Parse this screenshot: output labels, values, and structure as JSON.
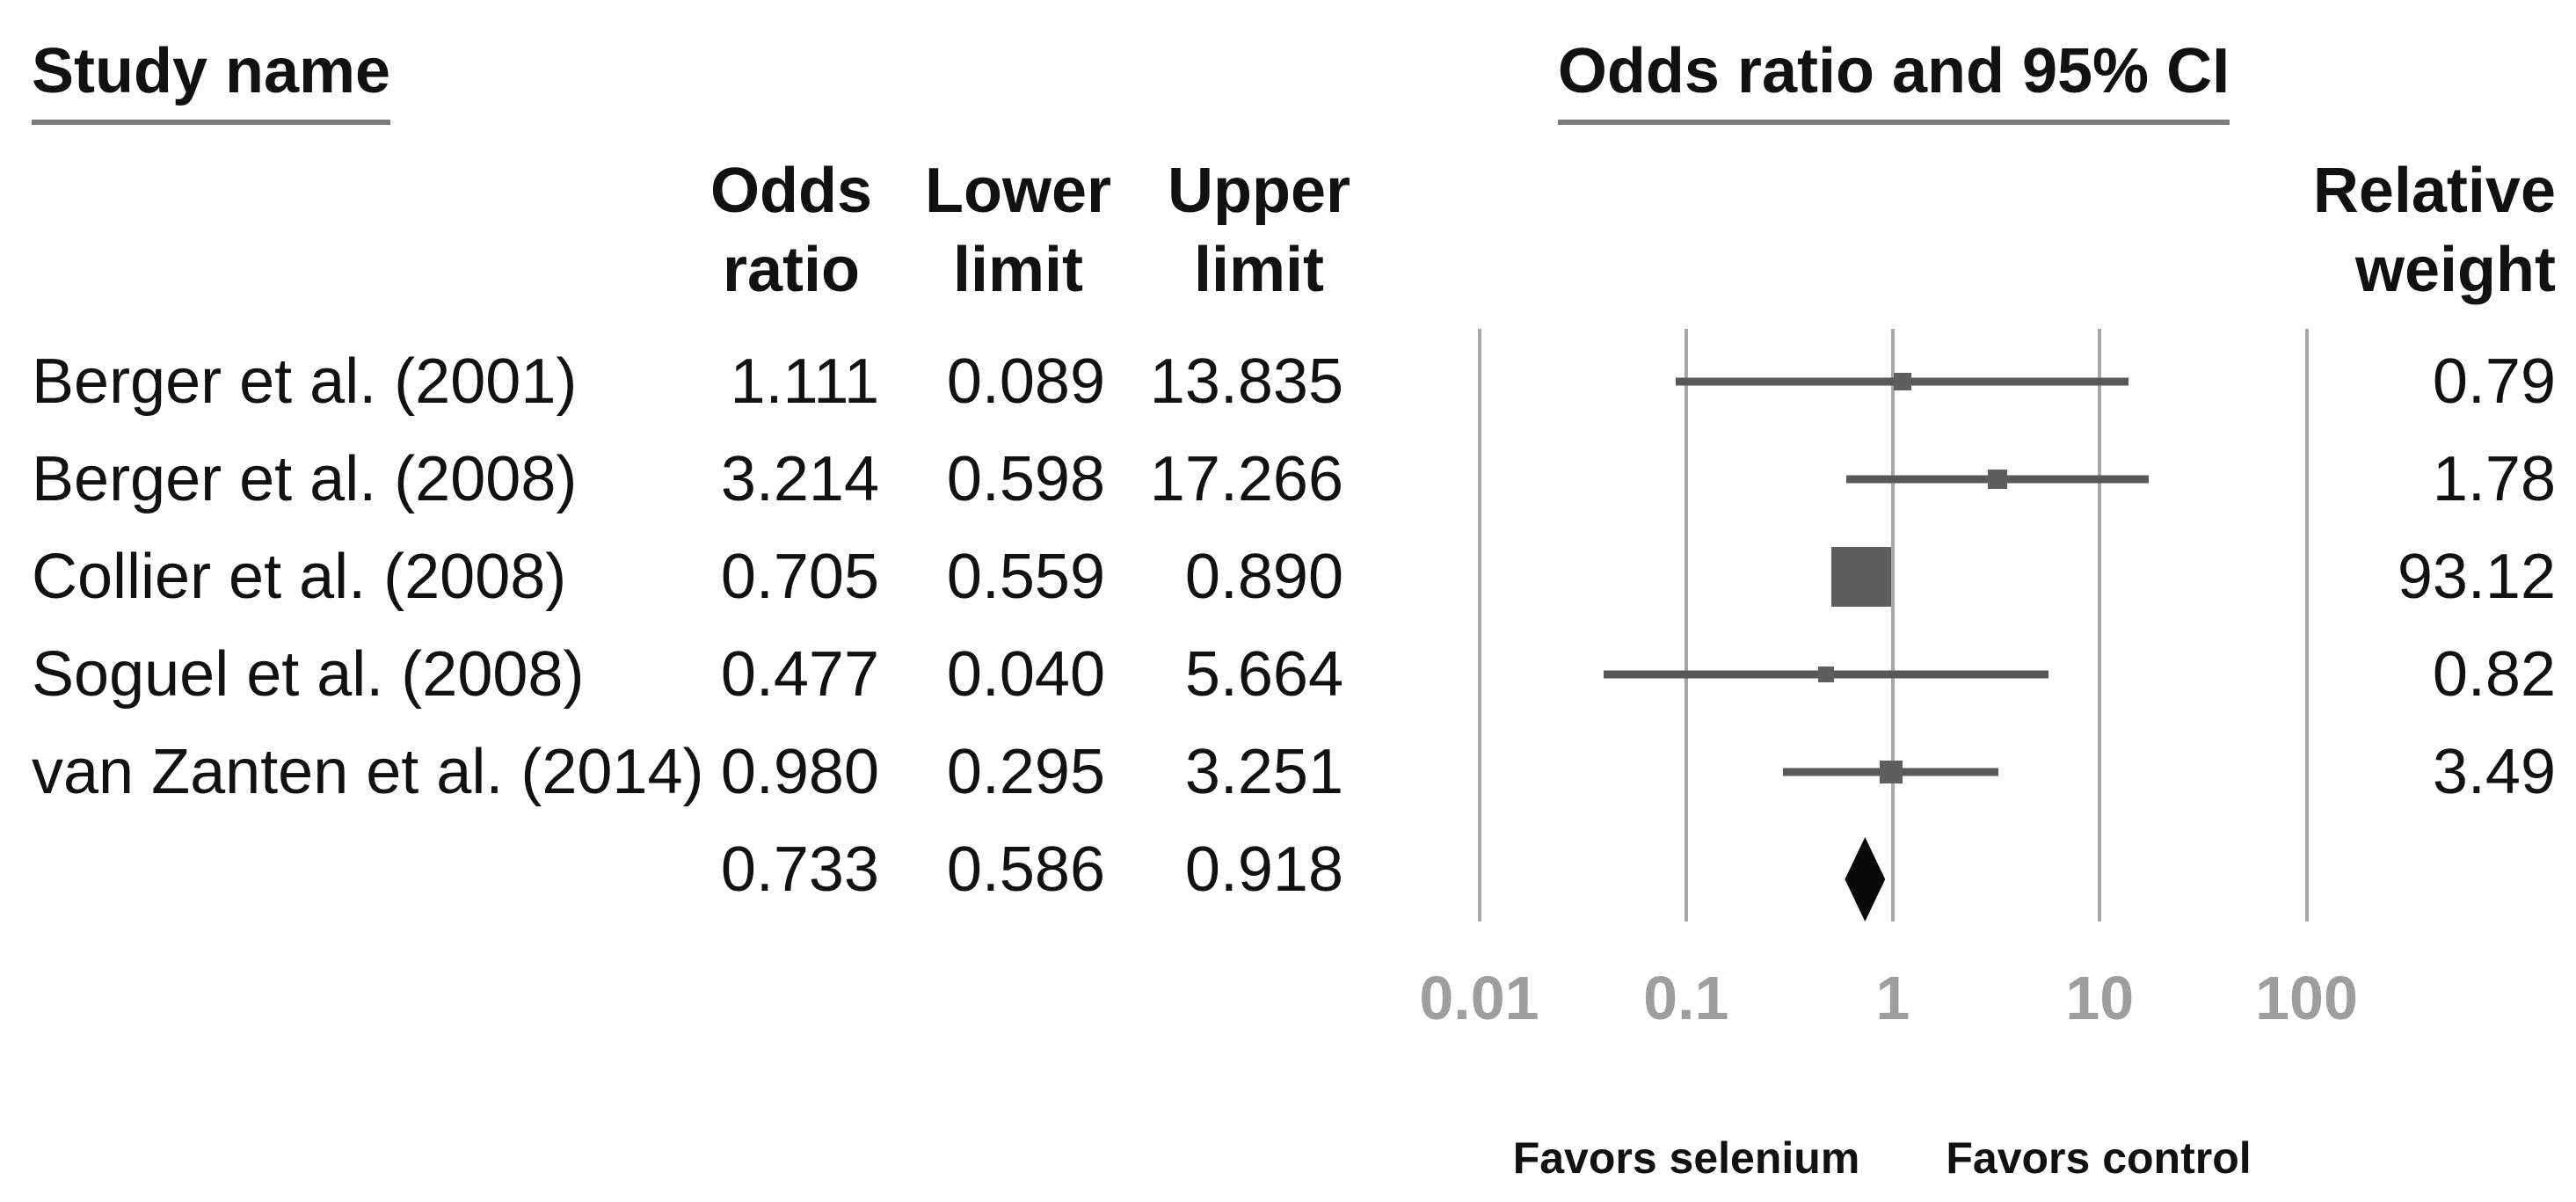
{
  "left_panel": {
    "heading": "Study name"
  },
  "table_headers": {
    "odds_ratio": [
      "Odds",
      "ratio"
    ],
    "lower_limit": [
      "Lower",
      "limit"
    ],
    "upper_limit": [
      "Upper",
      "limit"
    ],
    "relative_weight": [
      "Relative",
      "weight"
    ]
  },
  "right_panel": {
    "heading": "Odds ratio and 95% CI"
  },
  "chart_data": {
    "type": "forest",
    "x_scale": "log10",
    "x_range": [
      0.01,
      100
    ],
    "axis_ticks": [
      "0.01",
      "0.1",
      "1",
      "10",
      "100"
    ],
    "xlabel_left": "Favors selenium",
    "xlabel_right": "Favors control",
    "grid": "vertical-log-decades",
    "studies": [
      {
        "name": "Berger et al. (2001)",
        "odds_ratio": "1.111",
        "lower": "0.089",
        "upper": "13.835",
        "relative_weight": "0.79",
        "marker_size": 20
      },
      {
        "name": "Berger et al. (2008)",
        "odds_ratio": "3.214",
        "lower": "0.598",
        "upper": "17.266",
        "relative_weight": "1.78",
        "marker_size": 22
      },
      {
        "name": "Collier et al. (2008)",
        "odds_ratio": "0.705",
        "lower": "0.559",
        "upper": "0.890",
        "relative_weight": "93.12",
        "marker_size": 68
      },
      {
        "name": "Soguel et al. (2008)",
        "odds_ratio": "0.477",
        "lower": "0.040",
        "upper": "5.664",
        "relative_weight": "0.82",
        "marker_size": 18
      },
      {
        "name": "van Zanten et al. (2014)",
        "odds_ratio": "0.980",
        "lower": "0.295",
        "upper": "3.251",
        "relative_weight": "3.49",
        "marker_size": 26
      }
    ],
    "summary": {
      "odds_ratio": "0.733",
      "lower": "0.586",
      "upper": "0.918"
    }
  },
  "colors": {
    "ci_bar": "#585858",
    "marker": "#5e5e5e",
    "gridline": "#a8a8a8",
    "tick_label": "#9e9e9e",
    "diamond": "#0a0a0a",
    "underline": "#7a7a7a",
    "text": "#111111"
  }
}
